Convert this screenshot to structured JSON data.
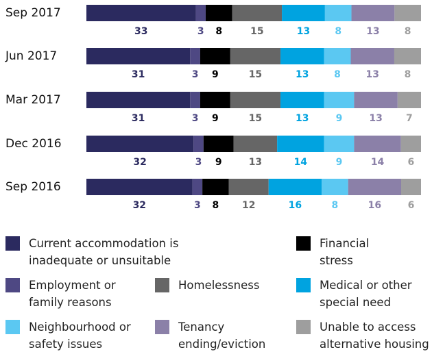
{
  "chart_data": {
    "type": "stacked-bar-horizontal",
    "categories": [
      "Sep 2017",
      "Jun 2017",
      "Mar 2017",
      "Dec 2016",
      "Sep 2016"
    ],
    "series": [
      {
        "name": "Current accommodation is inadequate or unsuitable",
        "color": "#2b2a5f",
        "label_color": "#2b2a5f",
        "values": [
          33,
          31,
          31,
          32,
          32
        ]
      },
      {
        "name": "Employment or family reasons",
        "color": "#4e4883",
        "label_color": "#4e4883",
        "values": [
          3,
          3,
          3,
          3,
          3
        ]
      },
      {
        "name": "Financial stress",
        "color": "#000000",
        "label_color": "#000000",
        "values": [
          8,
          9,
          9,
          9,
          8
        ]
      },
      {
        "name": "Homelessness",
        "color": "#666666",
        "label_color": "#666666",
        "values": [
          15,
          15,
          15,
          13,
          12
        ]
      },
      {
        "name": "Medical or other special need",
        "color": "#00a3e0",
        "label_color": "#00a3e0",
        "values": [
          13,
          13,
          13,
          14,
          16
        ]
      },
      {
        "name": "Neighbourhood or safety issues",
        "color": "#5bc8f2",
        "label_color": "#5bc8f2",
        "values": [
          8,
          8,
          9,
          9,
          8
        ]
      },
      {
        "name": "Tenancy ending/eviction",
        "color": "#8b80a8",
        "label_color": "#8b80a8",
        "values": [
          13,
          13,
          13,
          14,
          16
        ]
      },
      {
        "name": "Unable to access alternative housing",
        "color": "#9e9e9e",
        "label_color": "#9e9e9e",
        "values": [
          8,
          8,
          7,
          6,
          6
        ]
      }
    ]
  }
}
